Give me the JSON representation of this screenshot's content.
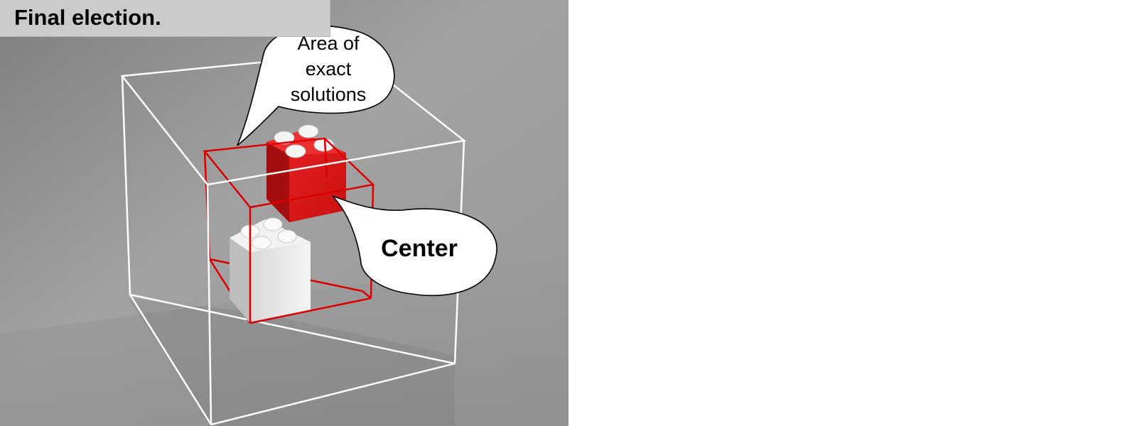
{
  "header": {
    "title": "Final election."
  },
  "callouts": {
    "exact_area": {
      "lines": [
        "Area of",
        "exact",
        "solutions"
      ]
    },
    "center": {
      "label": "Center"
    }
  },
  "colors": {
    "background": "#8f8f8f",
    "outer_box": "#ffffff",
    "inner_box": "#dd0000",
    "red_brick": "#e41c1c",
    "white_brick": "#ececec"
  }
}
